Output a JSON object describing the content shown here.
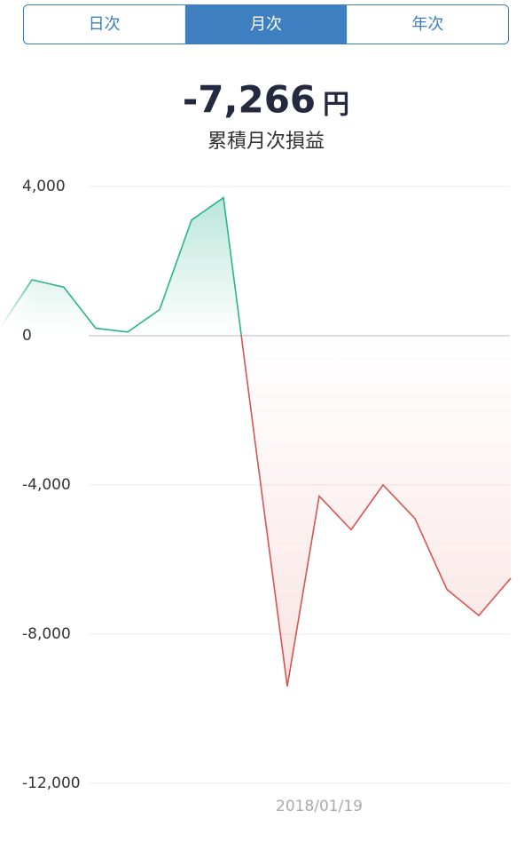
{
  "tabs": {
    "items": [
      "日次",
      "月次",
      "年次"
    ],
    "selected": 1
  },
  "summary": {
    "amount": "-7,266",
    "unit": "円",
    "label": "累積月次損益"
  },
  "chart_data": {
    "type": "line",
    "categories": [
      null,
      null,
      null,
      null,
      null,
      null,
      null,
      null,
      null,
      null,
      "2018/01/19",
      null,
      null,
      null,
      null,
      null,
      null
    ],
    "series": [
      {
        "values": [
          200,
          1500,
          1300,
          200,
          100,
          700,
          3100,
          3700,
          -2900,
          -9400,
          -4300,
          -5200,
          -4000,
          -4900,
          -6800,
          -7500,
          -6500
        ]
      }
    ],
    "positive_color": "#2bb38a",
    "negative_color": "#d9534f",
    "ylim": [
      -12000,
      4000
    ],
    "yticks": [
      {
        "value": 4000,
        "label": "4,000"
      },
      0,
      {
        "value": -4000,
        "label": "-4,000"
      },
      {
        "value": -8000,
        "label": "-8,000"
      },
      {
        "value": -12000,
        "label": "-12,000"
      }
    ],
    "grid": true
  }
}
